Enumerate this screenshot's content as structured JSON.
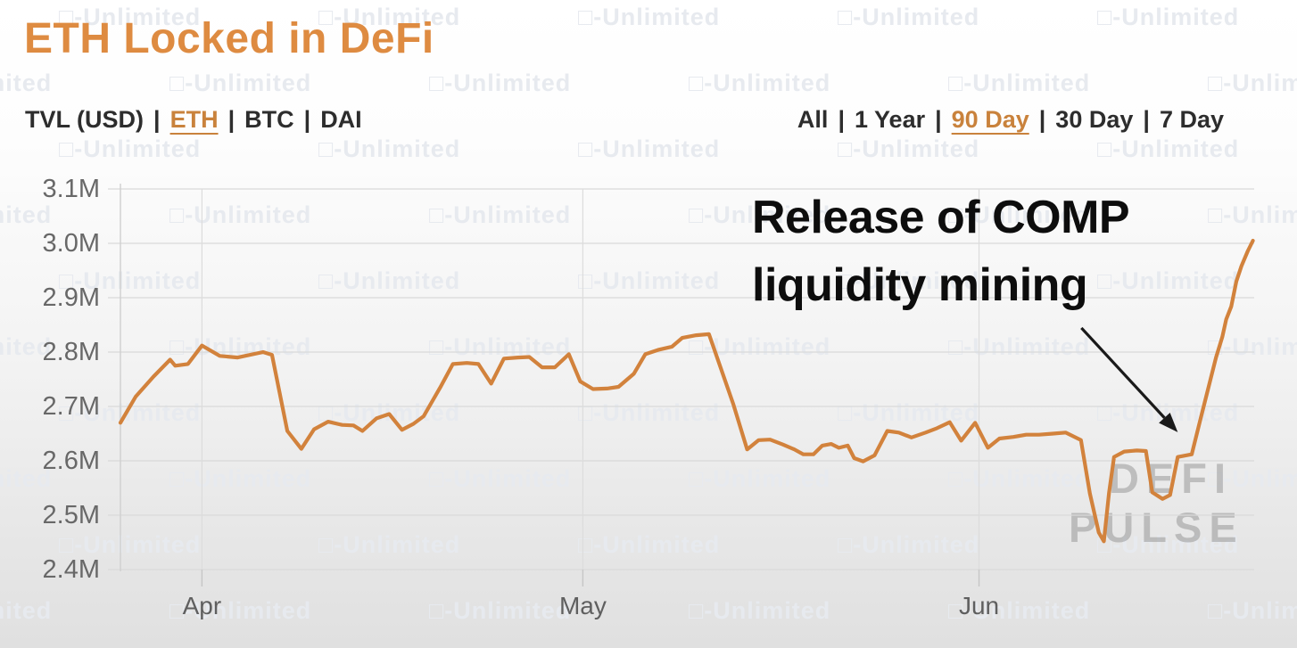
{
  "header": {
    "title": "ETH Locked in DeFi"
  },
  "filters": {
    "separator": "|",
    "metric": {
      "items": [
        {
          "label": "TVL (USD)",
          "active": false
        },
        {
          "label": "ETH",
          "active": true
        },
        {
          "label": "BTC",
          "active": false
        },
        {
          "label": "DAI",
          "active": false
        }
      ]
    },
    "range": {
      "items": [
        {
          "label": "All",
          "active": false
        },
        {
          "label": "1 Year",
          "active": false
        },
        {
          "label": "90 Day",
          "active": true
        },
        {
          "label": "30 Day",
          "active": false
        },
        {
          "label": "7 Day",
          "active": false
        }
      ]
    }
  },
  "annotation": {
    "line1": "Release of COMP",
    "line2": "liquidity mining"
  },
  "watermarks": {
    "tile_icon": "□",
    "tile_label": "-Unlimited",
    "brand_line1": "DEFI",
    "brand_line2": "PULSE"
  },
  "colors": {
    "accent_orange": "#DE8B41",
    "active_filter": "#C9823C",
    "line": "#D2823C",
    "grid": "#d9d9d9",
    "axis_text": "#686868",
    "annotation_text": "#0d0d0d",
    "arrow": "#1a1a1a"
  },
  "chart_data": {
    "type": "line",
    "title": "ETH Locked in DeFi",
    "series_name": "ETH locked",
    "unit": "M",
    "ylim": [
      2.4,
      3.1
    ],
    "grid": true,
    "legend": "none",
    "line_color": "#D2823C",
    "day_span": 89,
    "y_ticks": [
      {
        "label": "3.1M",
        "value": 3.1
      },
      {
        "label": "3.0M",
        "value": 3.0
      },
      {
        "label": "2.9M",
        "value": 2.9
      },
      {
        "label": "2.8M",
        "value": 2.8
      },
      {
        "label": "2.7M",
        "value": 2.7
      },
      {
        "label": "2.6M",
        "value": 2.6
      },
      {
        "label": "2.5M",
        "value": 2.5
      },
      {
        "label": "2.4M",
        "value": 2.4
      }
    ],
    "x_ticks": [
      {
        "label": "Apr",
        "day": 6.4
      },
      {
        "label": "May",
        "day": 36.3
      },
      {
        "label": "Jun",
        "day": 67.4
      }
    ],
    "annotation": {
      "text": "Release of COMP liquidity mining",
      "arrow_points_at_day": 83.0,
      "arrow_points_at_value": 2.61
    },
    "points": [
      [
        0,
        2.67
      ],
      [
        1.2,
        2.718
      ],
      [
        2.6,
        2.755
      ],
      [
        3.9,
        2.786
      ],
      [
        4.3,
        2.775
      ],
      [
        5.3,
        2.778
      ],
      [
        6.4,
        2.812
      ],
      [
        7.8,
        2.793
      ],
      [
        9.2,
        2.79
      ],
      [
        11.2,
        2.8
      ],
      [
        11.9,
        2.795
      ],
      [
        13.1,
        2.655
      ],
      [
        14.2,
        2.622
      ],
      [
        15.2,
        2.658
      ],
      [
        16.3,
        2.672
      ],
      [
        17.4,
        2.666
      ],
      [
        18.3,
        2.665
      ],
      [
        19.0,
        2.655
      ],
      [
        20.1,
        2.678
      ],
      [
        21.1,
        2.686
      ],
      [
        22.1,
        2.657
      ],
      [
        23.0,
        2.668
      ],
      [
        23.8,
        2.682
      ],
      [
        25.1,
        2.735
      ],
      [
        26.1,
        2.778
      ],
      [
        27.2,
        2.78
      ],
      [
        28.1,
        2.778
      ],
      [
        29.1,
        2.742
      ],
      [
        30.1,
        2.788
      ],
      [
        31.2,
        2.79
      ],
      [
        32.1,
        2.791
      ],
      [
        33.1,
        2.772
      ],
      [
        34.1,
        2.772
      ],
      [
        35.2,
        2.796
      ],
      [
        36.1,
        2.746
      ],
      [
        37.1,
        2.732
      ],
      [
        38.2,
        2.733
      ],
      [
        39.1,
        2.736
      ],
      [
        40.3,
        2.76
      ],
      [
        41.2,
        2.796
      ],
      [
        42.2,
        2.804
      ],
      [
        43.3,
        2.81
      ],
      [
        44.1,
        2.826
      ],
      [
        45.2,
        2.831
      ],
      [
        46.2,
        2.833
      ],
      [
        48.1,
        2.705
      ],
      [
        49.2,
        2.621
      ],
      [
        50.1,
        2.638
      ],
      [
        51.0,
        2.639
      ],
      [
        52.0,
        2.63
      ],
      [
        52.9,
        2.621
      ],
      [
        53.6,
        2.612
      ],
      [
        54.4,
        2.612
      ],
      [
        55.1,
        2.628
      ],
      [
        55.8,
        2.631
      ],
      [
        56.4,
        2.624
      ],
      [
        57.1,
        2.628
      ],
      [
        57.6,
        2.605
      ],
      [
        58.3,
        2.599
      ],
      [
        59.2,
        2.61
      ],
      [
        60.2,
        2.655
      ],
      [
        61.1,
        2.652
      ],
      [
        62.1,
        2.643
      ],
      [
        63.2,
        2.652
      ],
      [
        64.1,
        2.66
      ],
      [
        65.1,
        2.671
      ],
      [
        66.0,
        2.637
      ],
      [
        67.1,
        2.67
      ],
      [
        68.1,
        2.624
      ],
      [
        69.0,
        2.641
      ],
      [
        70.1,
        2.644
      ],
      [
        71.1,
        2.648
      ],
      [
        72.1,
        2.648
      ],
      [
        73.2,
        2.65
      ],
      [
        74.2,
        2.652
      ],
      [
        75.4,
        2.638
      ],
      [
        76.1,
        2.54
      ],
      [
        76.8,
        2.468
      ],
      [
        77.2,
        2.452
      ],
      [
        77.6,
        2.54
      ],
      [
        78.0,
        2.607
      ],
      [
        78.8,
        2.617
      ],
      [
        79.8,
        2.619
      ],
      [
        80.5,
        2.618
      ],
      [
        81.0,
        2.542
      ],
      [
        81.8,
        2.53
      ],
      [
        82.4,
        2.537
      ],
      [
        83.0,
        2.607
      ],
      [
        84.1,
        2.612
      ],
      [
        84.8,
        2.678
      ],
      [
        85.4,
        2.734
      ],
      [
        86.0,
        2.79
      ],
      [
        86.5,
        2.828
      ],
      [
        86.8,
        2.86
      ],
      [
        87.2,
        2.884
      ],
      [
        87.6,
        2.93
      ],
      [
        88.0,
        2.958
      ],
      [
        88.5,
        2.986
      ],
      [
        88.9,
        3.005
      ]
    ]
  }
}
